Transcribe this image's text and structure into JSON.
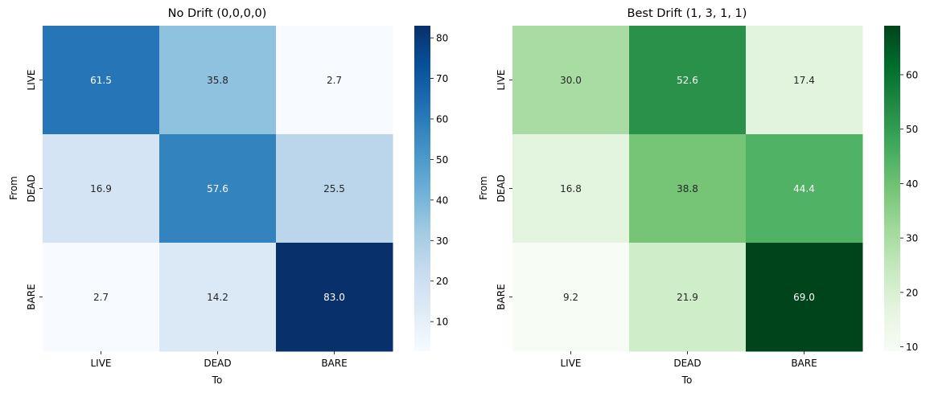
{
  "chart_data": [
    {
      "type": "heatmap",
      "title": "No Drift (0,0,0,0)",
      "xlabel": "To",
      "ylabel": "From",
      "x_categories": [
        "LIVE",
        "DEAD",
        "BARE"
      ],
      "y_categories": [
        "LIVE",
        "DEAD",
        "BARE"
      ],
      "values": [
        [
          61.5,
          35.8,
          2.7
        ],
        [
          16.9,
          57.6,
          25.5
        ],
        [
          2.7,
          14.2,
          83.0
        ]
      ],
      "colormap": "Blues",
      "colorbar": {
        "range": [
          2.7,
          83.0
        ],
        "ticks": [
          10,
          20,
          30,
          40,
          50,
          60,
          70,
          80
        ]
      }
    },
    {
      "type": "heatmap",
      "title": "Best Drift (1, 3, 1, 1)",
      "xlabel": "To",
      "ylabel": "From",
      "x_categories": [
        "LIVE",
        "DEAD",
        "BARE"
      ],
      "y_categories": [
        "LIVE",
        "DEAD",
        "BARE"
      ],
      "values": [
        [
          30.0,
          52.6,
          17.4
        ],
        [
          16.8,
          38.8,
          44.4
        ],
        [
          9.2,
          21.9,
          69.0
        ]
      ],
      "colormap": "Greens",
      "colorbar": {
        "range": [
          9.2,
          69.0
        ],
        "ticks": [
          10,
          20,
          30,
          40,
          50,
          60
        ]
      }
    }
  ],
  "colormaps": {
    "Blues": [
      "#f7fbff",
      "#deebf7",
      "#c6dbef",
      "#9ecae1",
      "#6baed6",
      "#4292c6",
      "#2171b5",
      "#08519c",
      "#08306b"
    ],
    "Greens": [
      "#f7fcf5",
      "#e5f5e0",
      "#c7e9c0",
      "#a1d99b",
      "#74c476",
      "#41ab5d",
      "#238b45",
      "#006d2c",
      "#00441b"
    ]
  }
}
